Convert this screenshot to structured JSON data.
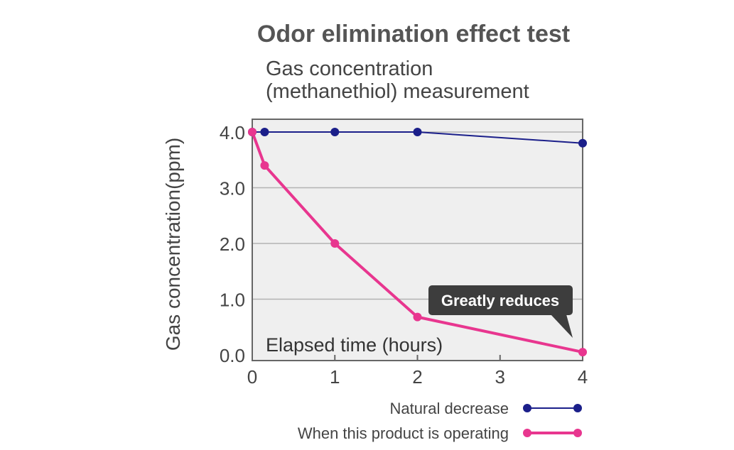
{
  "chart_data": {
    "type": "line",
    "title": "Odor elimination effect test",
    "subtitle_line1": "Gas concentration",
    "subtitle_line2": "(methanethiol) measurement",
    "ylabel": "Gas concentration(ppm)",
    "xlabel": "Elapsed time (hours)",
    "xlim": [
      0,
      4
    ],
    "ylim": [
      0,
      4
    ],
    "x_ticks": [
      "0",
      "1",
      "2",
      "3",
      "4"
    ],
    "y_ticks": [
      "0.0",
      "1.0",
      "2.0",
      "3.0",
      "4.0"
    ],
    "grid": true,
    "legend_position": "bottom-right",
    "annotation": "Greatly reduces",
    "series": [
      {
        "name": "Natural decrease",
        "color": "#1b1f8a",
        "x": [
          0,
          0.15,
          1,
          2,
          4
        ],
        "y": [
          4.0,
          4.0,
          4.0,
          4.0,
          3.8
        ]
      },
      {
        "name": "When this product is operating",
        "color": "#e8368f",
        "x": [
          0,
          0.15,
          1,
          2,
          4
        ],
        "y": [
          4.0,
          3.4,
          2.0,
          0.68,
          0.05
        ]
      }
    ]
  },
  "colors": {
    "plot_background": "#efefef",
    "axis": "#666666",
    "grid": "#b3b3b3",
    "callout": "#3d3d3d"
  }
}
